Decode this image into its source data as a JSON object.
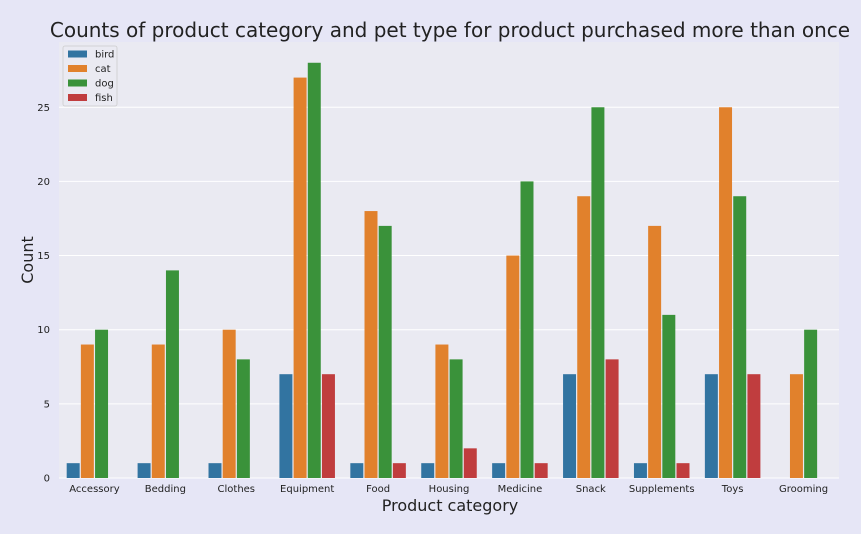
{
  "chart_data": {
    "type": "bar",
    "title": "Counts of product category and pet type for product purchased more than once",
    "xlabel": "Product category",
    "ylabel": "Count",
    "ylim": [
      0,
      29.4
    ],
    "yticks": [
      0,
      5,
      10,
      15,
      20,
      25
    ],
    "grid": true,
    "legend_position": "top-left",
    "categories": [
      "Accessory",
      "Bedding",
      "Clothes",
      "Equipment",
      "Food",
      "Housing",
      "Medicine",
      "Snack",
      "Supplements",
      "Toys",
      "Grooming"
    ],
    "series": [
      {
        "name": "bird",
        "color": "#3274a1",
        "values": [
          1,
          1,
          1,
          7,
          1,
          1,
          1,
          7,
          1,
          7,
          0
        ]
      },
      {
        "name": "cat",
        "color": "#e1812c",
        "values": [
          9,
          9,
          10,
          27,
          18,
          9,
          15,
          19,
          17,
          25,
          7
        ]
      },
      {
        "name": "dog",
        "color": "#3a923a",
        "values": [
          10,
          14,
          8,
          28,
          17,
          8,
          20,
          25,
          11,
          19,
          10
        ]
      },
      {
        "name": "fish",
        "color": "#c03d3e",
        "values": [
          0,
          0,
          0,
          7,
          1,
          2,
          1,
          8,
          1,
          7,
          0
        ]
      }
    ],
    "plot_background": "#eaeaf2",
    "grid_color": "#ffffff"
  }
}
